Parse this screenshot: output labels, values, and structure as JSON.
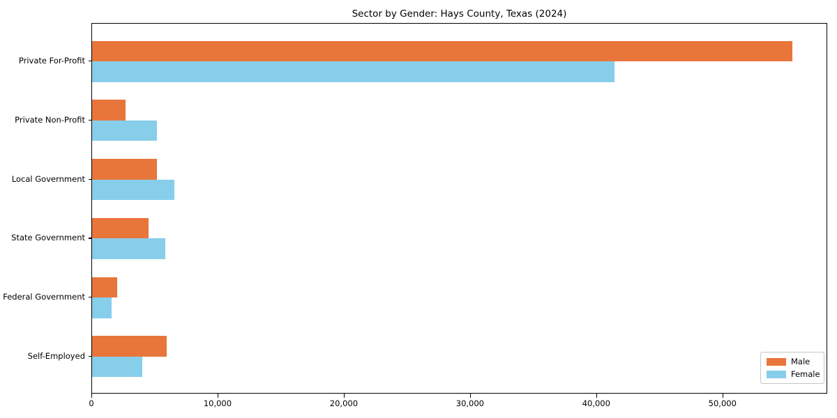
{
  "chart_data": {
    "type": "bar",
    "orientation": "horizontal",
    "title": "Sector by Gender: Hays County, Texas (2024)",
    "categories": [
      "Private For-Profit",
      "Private Non-Profit",
      "Local Government",
      "State Government",
      "Federal Government",
      "Self-Employed"
    ],
    "series": [
      {
        "name": "Male",
        "color": "#E8763B",
        "values": [
          55500,
          2630,
          5150,
          4480,
          1970,
          5930
        ]
      },
      {
        "name": "Female",
        "color": "#87CEEB",
        "values": [
          41400,
          5150,
          6540,
          5790,
          1560,
          3960
        ]
      }
    ],
    "xlabel": "",
    "ylabel": "",
    "xlim": [
      0,
      58300
    ],
    "xticks": [
      0,
      10000,
      20000,
      30000,
      40000,
      50000
    ],
    "xtick_labels": [
      "0",
      "10,000",
      "20,000",
      "30,000",
      "40,000",
      "50,000"
    ],
    "legend": {
      "position": "lower right",
      "entries": [
        "Male",
        "Female"
      ]
    },
    "grid": false,
    "background_color": "#ffffff",
    "axis_color": "#000000"
  }
}
